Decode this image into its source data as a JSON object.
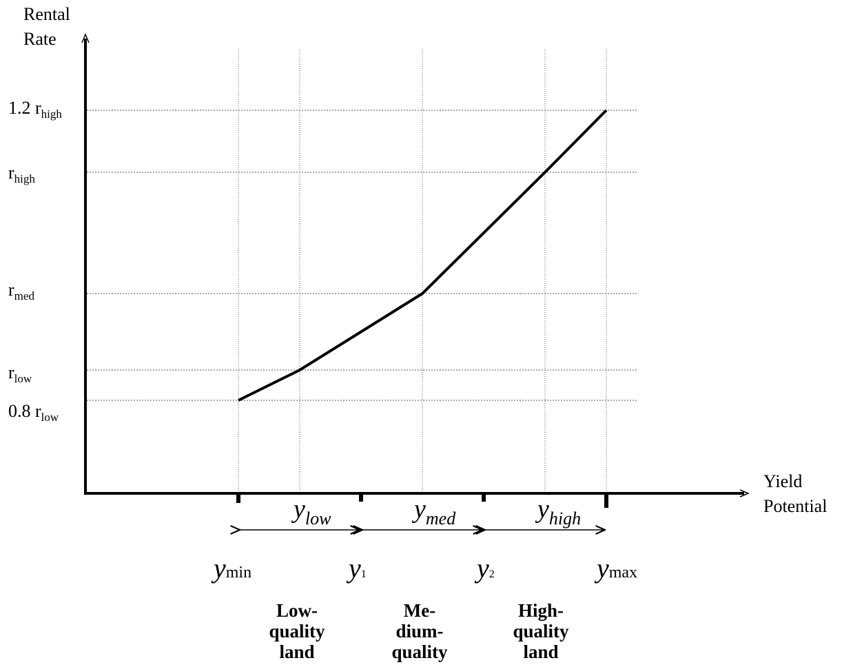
{
  "axes": {
    "y_title_line1": "Rental",
    "y_title_line2": "Rate",
    "x_title_line1": "Yield",
    "x_title_line2": "Potential"
  },
  "y_ticks": {
    "r12_coef": "1.2 r",
    "r12_sub": "high",
    "rhigh_base": "r",
    "rhigh_sub": "high",
    "rmed_base": "r",
    "rmed_sub": "med",
    "rlow_base": "r",
    "rlow_sub": "low",
    "r08_coef": "0.8 r",
    "r08_sub": "low"
  },
  "x_points": {
    "ymin_base": "y",
    "ymin_sub": "min",
    "y1_base": "y",
    "y1_sub": "1",
    "y2_base": "y",
    "y2_sub": "2",
    "ymax_base": "y",
    "ymax_sub": "max"
  },
  "ranges": {
    "low_base": "y",
    "low_sub": "low",
    "med_base": "y",
    "med_sub": "med",
    "high_base": "y",
    "high_sub": "high"
  },
  "quality": {
    "low": [
      "Low-",
      "quality",
      "land"
    ],
    "med": [
      "Me-",
      "dium-",
      "quality"
    ],
    "high": [
      "High-",
      "quality",
      "land"
    ]
  }
}
